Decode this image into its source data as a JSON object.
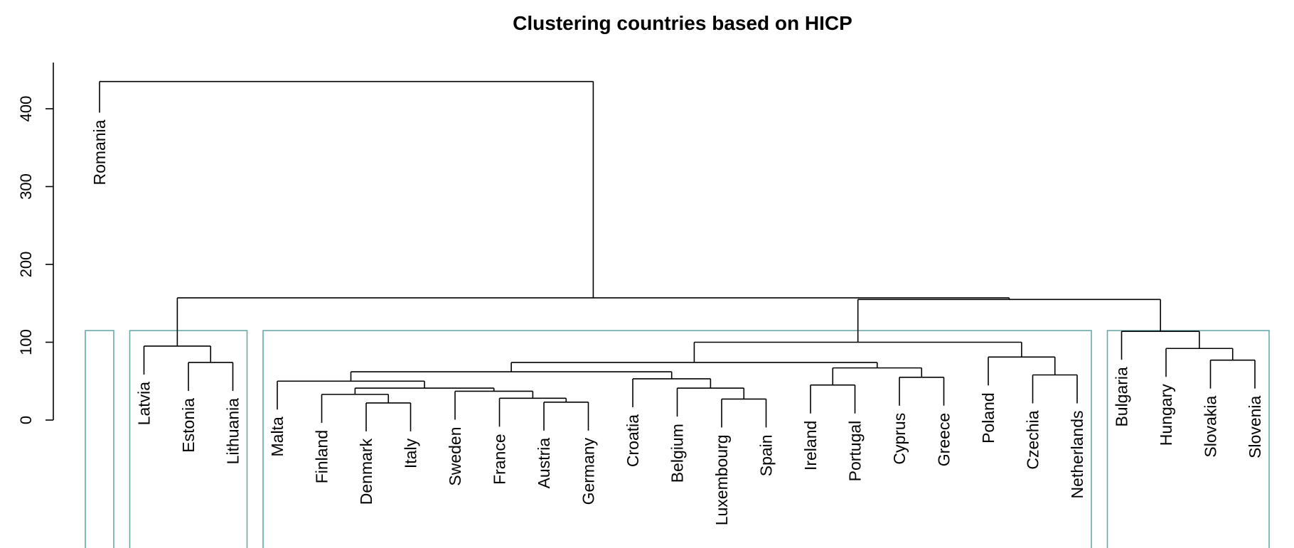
{
  "chart_data": {
    "type": "dendrogram",
    "title": "Clustering countries based on HICP",
    "ylim": [
      0,
      400
    ],
    "yticks": [
      0,
      100,
      200,
      300,
      400
    ],
    "leaves": [
      "Romania",
      "Latvia",
      "Estonia",
      "Lithuania",
      "Malta",
      "Finland",
      "Denmark",
      "Italy",
      "Sweden",
      "France",
      "Austria",
      "Germany",
      "Croatia",
      "Belgium",
      "Luxembourg",
      "Spain",
      "Ireland",
      "Portugal",
      "Cyprus",
      "Greece",
      "Poland",
      "Czechia",
      "Netherlands",
      "Bulgaria",
      "Hungary",
      "Slovakia",
      "Slovenia"
    ],
    "merges": [
      {
        "members": [
          "Denmark",
          "Italy"
        ],
        "height": 22
      },
      {
        "members": [
          "Austria",
          "Germany"
        ],
        "height": 23
      },
      {
        "members": [
          "Luxembourg",
          "Spain"
        ],
        "height": 27
      },
      {
        "members": [
          "France",
          "Austria+Germany"
        ],
        "height": 28
      },
      {
        "members": [
          "Finland",
          "Denmark+Italy"
        ],
        "height": 33
      },
      {
        "members": [
          "Sweden",
          "France+Austria+Germany"
        ],
        "height": 37
      },
      {
        "members": [
          "Belgium",
          "Luxembourg+Spain"
        ],
        "height": 41
      },
      {
        "members": [
          "Finland+Denmark+Italy",
          "Sweden+France+Austria+Germany"
        ],
        "height": 41
      },
      {
        "members": [
          "Ireland",
          "Portugal"
        ],
        "height": 45
      },
      {
        "members": [
          "Malta",
          "Finland..Germany"
        ],
        "height": 50
      },
      {
        "members": [
          "Croatia",
          "Belgium+Luxembourg+Spain"
        ],
        "height": 53
      },
      {
        "members": [
          "Cyprus",
          "Greece"
        ],
        "height": 55
      },
      {
        "members": [
          "Czechia",
          "Netherlands"
        ],
        "height": 58
      },
      {
        "members": [
          "Malta..Germany",
          "Croatia..Spain"
        ],
        "height": 62
      },
      {
        "members": [
          "Ireland+Portugal",
          "Cyprus+Greece"
        ],
        "height": 67
      },
      {
        "members": [
          "Malta..Spain",
          "Ireland..Greece"
        ],
        "height": 74
      },
      {
        "members": [
          "Estonia",
          "Lithuania"
        ],
        "height": 74
      },
      {
        "members": [
          "Slovakia",
          "Slovenia"
        ],
        "height": 77
      },
      {
        "members": [
          "Poland",
          "Czechia+Netherlands"
        ],
        "height": 81
      },
      {
        "members": [
          "Hungary",
          "Slovakia+Slovenia"
        ],
        "height": 92
      },
      {
        "members": [
          "Latvia",
          "Estonia+Lithuania"
        ],
        "height": 95
      },
      {
        "members": [
          "Malta..Greece",
          "Poland..Netherlands"
        ],
        "height": 100
      },
      {
        "members": [
          "Bulgaria",
          "Hungary..Slovenia"
        ],
        "height": 114
      },
      {
        "members": [
          "Malta..Netherlands",
          "Bulgaria..Slovenia"
        ],
        "height": 155
      },
      {
        "members": [
          "Latvia..Lithuania",
          "Malta..Slovenia"
        ],
        "height": 157
      },
      {
        "members": [
          "Romania",
          "Latvia..Slovenia"
        ],
        "height": 435
      }
    ],
    "cluster_boxes": [
      {
        "from": "Romania",
        "to": "Romania"
      },
      {
        "from": "Latvia",
        "to": "Lithuania"
      },
      {
        "from": "Malta",
        "to": "Netherlands"
      },
      {
        "from": "Bulgaria",
        "to": "Slovenia"
      }
    ],
    "colors": {
      "tree": "#000000",
      "cluster_box": "#6aa8aa"
    }
  }
}
